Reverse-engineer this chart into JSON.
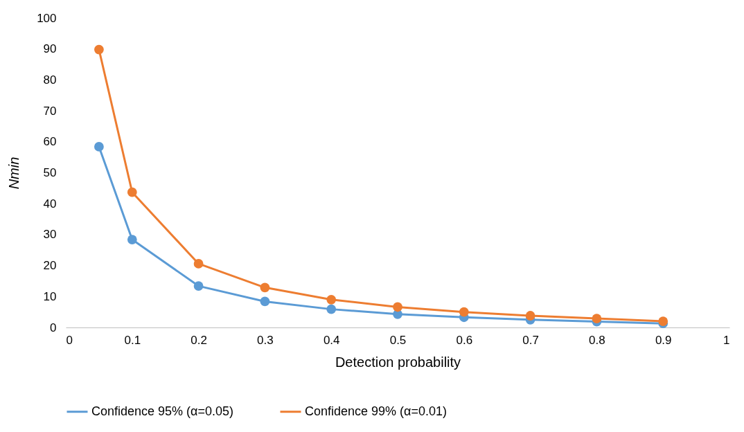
{
  "chart_data": {
    "type": "line",
    "xlabel": "Detection probability",
    "ylabel": "Nmin",
    "x": [
      0.05,
      0.1,
      0.2,
      0.3,
      0.4,
      0.5,
      0.6,
      0.7,
      0.8,
      0.9
    ],
    "series": [
      {
        "name": "Confidence 95% (α=0.05)",
        "color": "#5b9bd5",
        "values": [
          58.4,
          28.4,
          13.4,
          8.4,
          5.9,
          4.3,
          3.3,
          2.5,
          1.9,
          1.3
        ]
      },
      {
        "name": "Confidence 99% (α=0.01)",
        "color": "#ed7d31",
        "values": [
          89.8,
          43.7,
          20.6,
          12.9,
          9.0,
          6.6,
          5.0,
          3.8,
          2.9,
          2.0
        ]
      }
    ],
    "xlim": [
      0,
      1
    ],
    "ylim": [
      0,
      100
    ],
    "xticks": [
      0,
      0.1,
      0.2,
      0.3,
      0.4,
      0.5,
      0.6,
      0.7,
      0.8,
      0.9,
      1
    ],
    "yticks": [
      0,
      10,
      20,
      30,
      40,
      50,
      60,
      70,
      80,
      90,
      100
    ],
    "legend": "bottom",
    "marker": "circle"
  }
}
